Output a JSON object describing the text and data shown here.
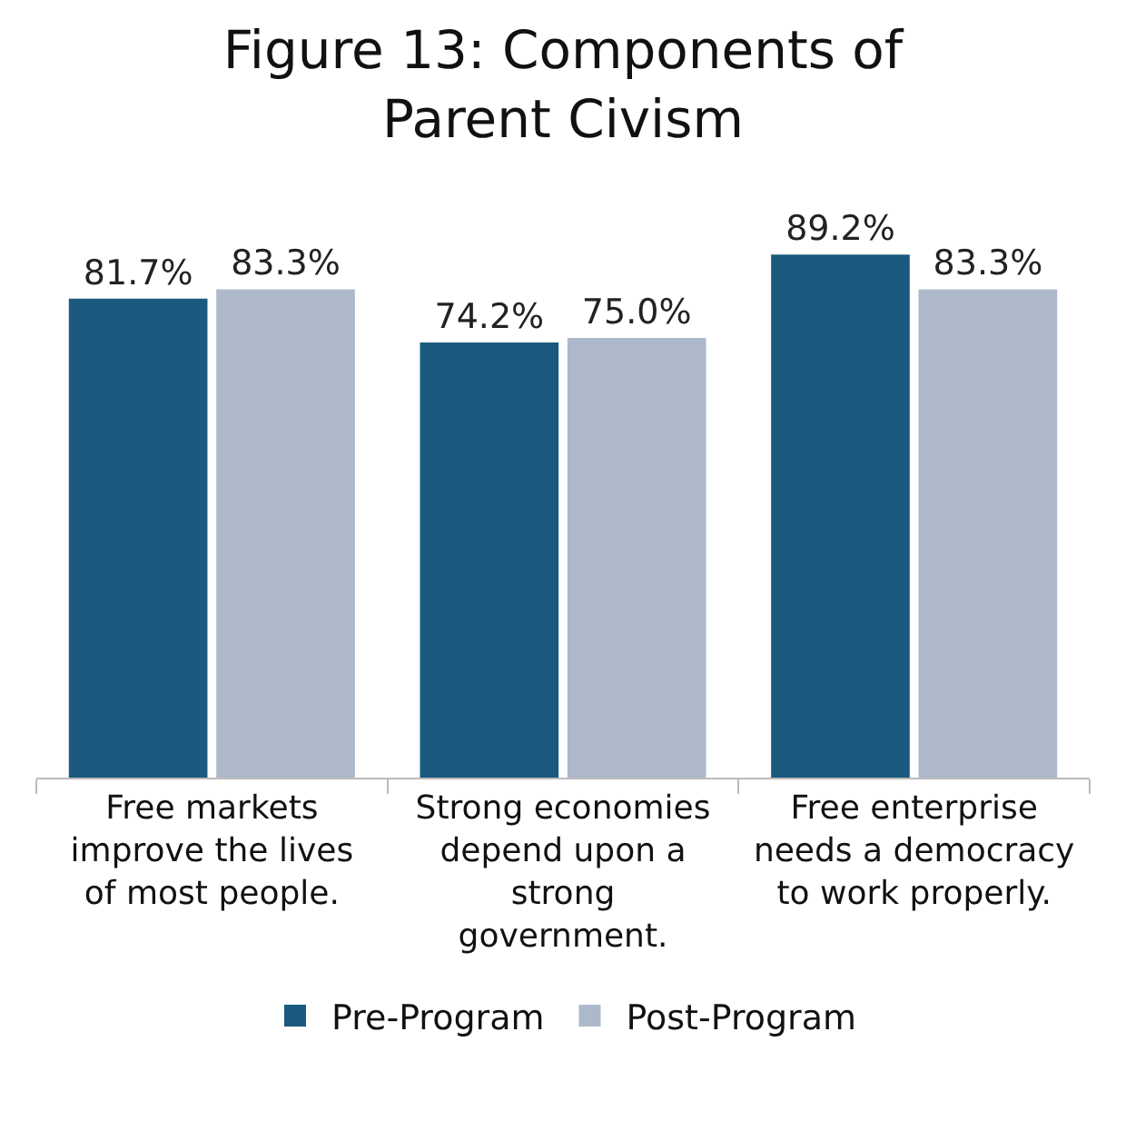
{
  "chart_data": {
    "type": "bar",
    "title": "Figure 13: Components of Parent Civism",
    "categories": [
      "Free markets improve the lives of most people.",
      "Strong economies depend upon a strong government.",
      "Free enterprise needs a democracy to work properly."
    ],
    "series": [
      {
        "name": "Pre-Program",
        "color": "#1b5a7e",
        "values": [
          81.7,
          74.2,
          89.2
        ],
        "value_labels": [
          "81.7%",
          "74.2%",
          "89.2%"
        ]
      },
      {
        "name": "Post-Program",
        "color": "#adb9cb",
        "values": [
          83.3,
          75.0,
          83.3
        ],
        "value_labels": [
          "83.3%",
          "75.0%",
          "83.3%"
        ]
      }
    ],
    "legend": "bottom",
    "grid": false,
    "tick_labels": "x"
  }
}
